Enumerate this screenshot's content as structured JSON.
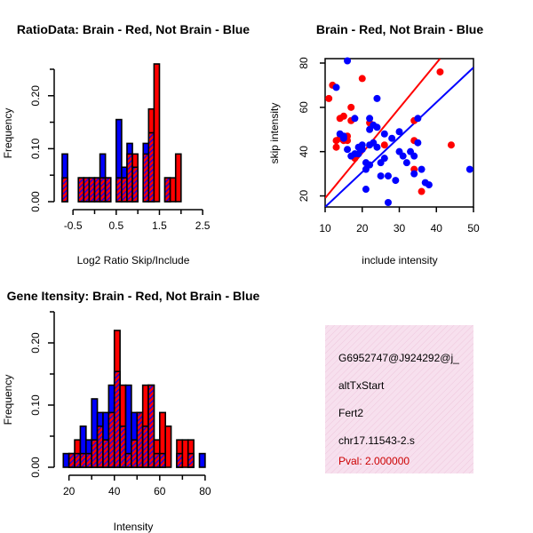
{
  "colors": {
    "red": "#ff0000",
    "blue": "#0000ff",
    "purple": "#8b1a8b",
    "info_bg": "#f7e0ee",
    "pval": "#cc0000"
  },
  "chart_data": [
    {
      "id": "ratio-hist",
      "type": "bar",
      "title": "RatioData: Brain - Red, Not Brain - Blue",
      "xlabel": "Log2 Ratio Skip/Include",
      "ylabel": "Frequency",
      "xticks": [
        "-0.5",
        "0.5",
        "1.5",
        "2.5"
      ],
      "yticks": [
        "0.00",
        "0.10",
        "0.20"
      ],
      "xlim": [
        -0.75,
        2.6
      ],
      "ylim": [
        0,
        0.26
      ],
      "bin_width": 0.125,
      "bins": [
        {
          "x0": -0.75,
          "red": 0.045,
          "blue": 0.09
        },
        {
          "x0": -0.625,
          "red": 0.0,
          "blue": 0.0
        },
        {
          "x0": -0.5,
          "red": 0.0,
          "blue": 0.0
        },
        {
          "x0": -0.375,
          "red": 0.045,
          "blue": 0.045
        },
        {
          "x0": -0.25,
          "red": 0.045,
          "blue": 0.045
        },
        {
          "x0": -0.125,
          "red": 0.045,
          "blue": 0.045
        },
        {
          "x0": 0.0,
          "red": 0.045,
          "blue": 0.045
        },
        {
          "x0": 0.125,
          "red": 0.045,
          "blue": 0.09
        },
        {
          "x0": 0.25,
          "red": 0.045,
          "blue": 0.045
        },
        {
          "x0": 0.375,
          "red": 0.0,
          "blue": 0.0
        },
        {
          "x0": 0.5,
          "red": 0.045,
          "blue": 0.155
        },
        {
          "x0": 0.625,
          "red": 0.045,
          "blue": 0.065
        },
        {
          "x0": 0.75,
          "red": 0.09,
          "blue": 0.11
        },
        {
          "x0": 0.875,
          "red": 0.09,
          "blue": 0.065
        },
        {
          "x0": 1.0,
          "red": 0.0,
          "blue": 0.0
        },
        {
          "x0": 1.125,
          "red": 0.09,
          "blue": 0.11
        },
        {
          "x0": 1.25,
          "red": 0.175,
          "blue": 0.13
        },
        {
          "x0": 1.375,
          "red": 0.26,
          "blue": 0.0
        },
        {
          "x0": 1.5,
          "red": 0.0,
          "blue": 0.0
        },
        {
          "x0": 1.625,
          "red": 0.045,
          "blue": 0.045
        },
        {
          "x0": 1.75,
          "red": 0.045,
          "blue": 0.0
        },
        {
          "x0": 1.875,
          "red": 0.09,
          "blue": 0.0
        }
      ]
    },
    {
      "id": "scatter",
      "type": "scatter",
      "title": "Brain - Red, Not Brain - Blue",
      "xlabel": "include intensity",
      "ylabel": "skip intensity",
      "xticks": [
        "10",
        "20",
        "30",
        "40",
        "50"
      ],
      "yticks": [
        "20",
        "40",
        "60",
        "80"
      ],
      "xlim": [
        10,
        50
      ],
      "ylim": [
        15,
        82
      ],
      "lines": [
        {
          "series": "red",
          "x": [
            10,
            41
          ],
          "y": [
            19,
            82
          ]
        },
        {
          "series": "blue",
          "x": [
            10,
            50
          ],
          "y": [
            15,
            78
          ]
        }
      ],
      "series": [
        {
          "name": "red",
          "points": [
            [
              11,
              64
            ],
            [
              12,
              70
            ],
            [
              13,
              42
            ],
            [
              13,
              45
            ],
            [
              14,
              55
            ],
            [
              14,
              46
            ],
            [
              15,
              45
            ],
            [
              15,
              56
            ],
            [
              16,
              47
            ],
            [
              16,
              45
            ],
            [
              17,
              54
            ],
            [
              17,
              60
            ],
            [
              18,
              37
            ],
            [
              20,
              73
            ],
            [
              22,
              53
            ],
            [
              26,
              43
            ],
            [
              34,
              45
            ],
            [
              34,
              54
            ],
            [
              34,
              32
            ],
            [
              36,
              22
            ],
            [
              41,
              76
            ],
            [
              44,
              43
            ]
          ]
        },
        {
          "name": "blue",
          "points": [
            [
              13,
              69
            ],
            [
              14,
              48
            ],
            [
              15,
              46
            ],
            [
              15,
              47
            ],
            [
              16,
              81
            ],
            [
              16,
              41
            ],
            [
              17,
              38
            ],
            [
              18,
              55
            ],
            [
              18,
              39
            ],
            [
              19,
              42
            ],
            [
              19,
              39
            ],
            [
              20,
              41
            ],
            [
              20,
              43
            ],
            [
              21,
              32
            ],
            [
              21,
              35
            ],
            [
              21,
              23
            ],
            [
              22,
              55
            ],
            [
              22,
              50
            ],
            [
              22,
              43
            ],
            [
              22,
              34
            ],
            [
              23,
              52
            ],
            [
              23,
              44
            ],
            [
              24,
              64
            ],
            [
              24,
              51
            ],
            [
              24,
              42
            ],
            [
              25,
              29
            ],
            [
              25,
              35
            ],
            [
              26,
              37
            ],
            [
              26,
              48
            ],
            [
              27,
              17
            ],
            [
              27,
              29
            ],
            [
              28,
              46
            ],
            [
              29,
              27
            ],
            [
              30,
              40
            ],
            [
              30,
              49
            ],
            [
              31,
              38
            ],
            [
              32,
              35
            ],
            [
              33,
              40
            ],
            [
              34,
              30
            ],
            [
              34,
              38
            ],
            [
              35,
              55
            ],
            [
              35,
              44
            ],
            [
              36,
              32
            ],
            [
              37,
              26
            ],
            [
              38,
              25
            ],
            [
              49,
              32
            ]
          ]
        }
      ]
    },
    {
      "id": "intensity-hist",
      "type": "bar",
      "title": "Gene Itensity: Brain - Red, Not Brain - Blue",
      "xlabel": "Intensity",
      "ylabel": "Frequency",
      "xticks": [
        "20",
        "40",
        "60",
        "80"
      ],
      "yticks": [
        "0.00",
        "0.10",
        "0.20"
      ],
      "xlim": [
        17,
        82
      ],
      "ylim": [
        0,
        0.22
      ],
      "bin_width": 2.5,
      "bins": [
        {
          "x0": 17.5,
          "red": 0.0,
          "blue": 0.022
        },
        {
          "x0": 20,
          "red": 0.022,
          "blue": 0.022
        },
        {
          "x0": 22.5,
          "red": 0.044,
          "blue": 0.022
        },
        {
          "x0": 25,
          "red": 0.022,
          "blue": 0.066
        },
        {
          "x0": 27.5,
          "red": 0.022,
          "blue": 0.044
        },
        {
          "x0": 30,
          "red": 0.044,
          "blue": 0.11
        },
        {
          "x0": 32.5,
          "red": 0.066,
          "blue": 0.088
        },
        {
          "x0": 35,
          "red": 0.044,
          "blue": 0.088
        },
        {
          "x0": 37.5,
          "red": 0.088,
          "blue": 0.132
        },
        {
          "x0": 40,
          "red": 0.22,
          "blue": 0.154
        },
        {
          "x0": 42.5,
          "red": 0.132,
          "blue": 0.066
        },
        {
          "x0": 45,
          "red": 0.022,
          "blue": 0.132
        },
        {
          "x0": 47.5,
          "red": 0.044,
          "blue": 0.088
        },
        {
          "x0": 50,
          "red": 0.088,
          "blue": 0.088
        },
        {
          "x0": 52.5,
          "red": 0.132,
          "blue": 0.066
        },
        {
          "x0": 55,
          "red": 0.132,
          "blue": 0.132
        },
        {
          "x0": 57.5,
          "red": 0.044,
          "blue": 0.022
        },
        {
          "x0": 60,
          "red": 0.088,
          "blue": 0.022
        },
        {
          "x0": 62.5,
          "red": 0.066,
          "blue": 0.0
        },
        {
          "x0": 65,
          "red": 0.0,
          "blue": 0.0
        },
        {
          "x0": 67.5,
          "red": 0.044,
          "blue": 0.022
        },
        {
          "x0": 70,
          "red": 0.044,
          "blue": 0.0
        },
        {
          "x0": 72.5,
          "red": 0.044,
          "blue": 0.022
        },
        {
          "x0": 75,
          "red": 0.0,
          "blue": 0.0
        },
        {
          "x0": 77.5,
          "red": 0.0,
          "blue": 0.022
        }
      ]
    }
  ],
  "info_box": {
    "event_id": "G6952747@J924292@j_",
    "event_type": "altTxStart",
    "gene": "Fert2",
    "location": "chr17.11543-2.s",
    "pval": "Pval: 2.000000"
  }
}
